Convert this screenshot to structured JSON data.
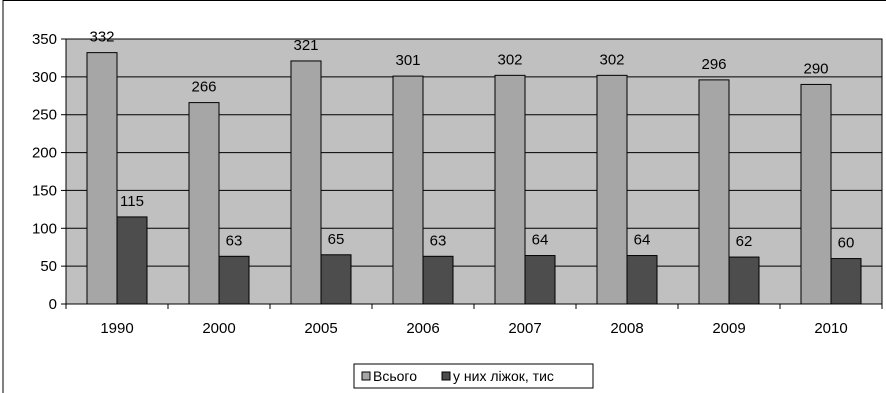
{
  "chart_data": {
    "type": "bar",
    "categories": [
      "1990",
      "2000",
      "2005",
      "2006",
      "2007",
      "2008",
      "2009",
      "2010"
    ],
    "series": [
      {
        "name": "Всього",
        "values": [
          332,
          266,
          321,
          301,
          302,
          302,
          296,
          290
        ],
        "color": "#a6a6a6"
      },
      {
        "name": "у них ліжок, тис",
        "values": [
          115,
          63,
          65,
          63,
          64,
          64,
          62,
          60
        ],
        "color": "#4d4d4d"
      }
    ],
    "ylim": [
      0,
      350
    ],
    "yticks": [
      0,
      50,
      100,
      150,
      200,
      250,
      300,
      350
    ],
    "grid": true,
    "plot_background": "#c0c0c0",
    "legend_position": "bottom"
  }
}
